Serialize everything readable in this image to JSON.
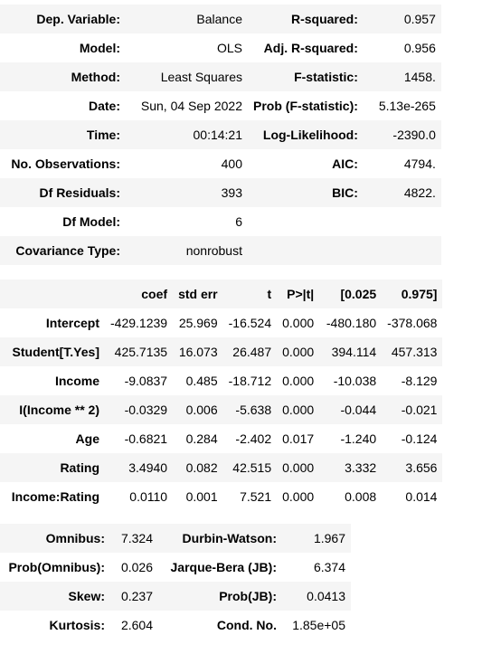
{
  "table1": {
    "rows": [
      [
        "Dep. Variable:",
        "Balance",
        "R-squared:",
        "0.957"
      ],
      [
        "Model:",
        "OLS",
        "Adj. R-squared:",
        "0.956"
      ],
      [
        "Method:",
        "Least Squares",
        "F-statistic:",
        "1458."
      ],
      [
        "Date:",
        "Sun, 04 Sep 2022",
        "Prob (F-statistic):",
        "5.13e-265"
      ],
      [
        "Time:",
        "00:14:21",
        "Log-Likelihood:",
        "-2390.0"
      ],
      [
        "No. Observations:",
        "400",
        "AIC:",
        "4794."
      ],
      [
        "Df Residuals:",
        "393",
        "BIC:",
        "4822."
      ],
      [
        "Df Model:",
        "6",
        "",
        ""
      ],
      [
        "Covariance Type:",
        "nonrobust",
        "",
        ""
      ]
    ]
  },
  "table2": {
    "header": [
      "",
      "coef",
      "std err",
      "t",
      "P>|t|",
      "[0.025",
      "0.975]"
    ],
    "rows": [
      [
        "Intercept",
        "-429.1239",
        "25.969",
        "-16.524",
        "0.000",
        "-480.180",
        "-378.068"
      ],
      [
        "Student[T.Yes]",
        "425.7135",
        "16.073",
        "26.487",
        "0.000",
        "394.114",
        "457.313"
      ],
      [
        "Income",
        "-9.0837",
        "0.485",
        "-18.712",
        "0.000",
        "-10.038",
        "-8.129"
      ],
      [
        "I(Income ** 2)",
        "-0.0329",
        "0.006",
        "-5.638",
        "0.000",
        "-0.044",
        "-0.021"
      ],
      [
        "Age",
        "-0.6821",
        "0.284",
        "-2.402",
        "0.017",
        "-1.240",
        "-0.124"
      ],
      [
        "Rating",
        "3.4940",
        "0.082",
        "42.515",
        "0.000",
        "3.332",
        "3.656"
      ],
      [
        "Income:Rating",
        "0.0110",
        "0.001",
        "7.521",
        "0.000",
        "0.008",
        "0.014"
      ]
    ]
  },
  "table3": {
    "rows": [
      [
        "Omnibus:",
        "7.324",
        "Durbin-Watson:",
        "1.967"
      ],
      [
        "Prob(Omnibus):",
        "0.026",
        "Jarque-Bera (JB):",
        "6.374"
      ],
      [
        "Skew:",
        "0.237",
        "Prob(JB):",
        "0.0413"
      ],
      [
        "Kurtosis:",
        "2.604",
        "Cond. No.",
        "1.85e+05"
      ]
    ]
  }
}
